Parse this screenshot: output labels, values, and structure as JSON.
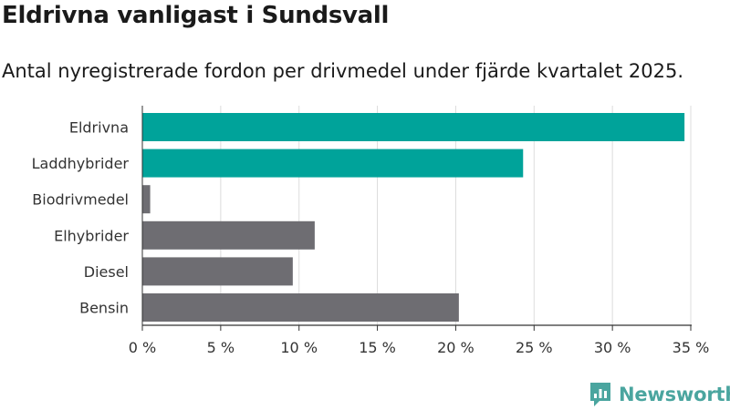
{
  "chart_data": {
    "type": "bar",
    "orientation": "horizontal",
    "title": "Eldrivna vanligast i Sundsvall",
    "subtitle": "Antal nyregistrerade fordon per drivmedel under fjärde kvartalet 2025.",
    "categories": [
      "Eldrivna",
      "Laddhybrider",
      "Biodrivmedel",
      "Elhybrider",
      "Diesel",
      "Bensin"
    ],
    "values": [
      34.6,
      24.3,
      0.5,
      11.0,
      9.6,
      20.2
    ],
    "bar_colors": [
      "#00a39a",
      "#00a39a",
      "#6e6d72",
      "#6e6d72",
      "#6e6d72",
      "#6e6d72"
    ],
    "xlim": [
      0,
      35
    ],
    "xticks": [
      0,
      5,
      10,
      15,
      20,
      25,
      30,
      35
    ],
    "xtick_labels": [
      "0 %",
      "5 %",
      "10 %",
      "15 %",
      "20 %",
      "25 %",
      "30 %",
      "35 %"
    ],
    "xlabel": "",
    "ylabel": "",
    "grid": "vertical",
    "legend": "none"
  },
  "brand": {
    "name": "Newsworthy",
    "color": "#4aa59f"
  }
}
